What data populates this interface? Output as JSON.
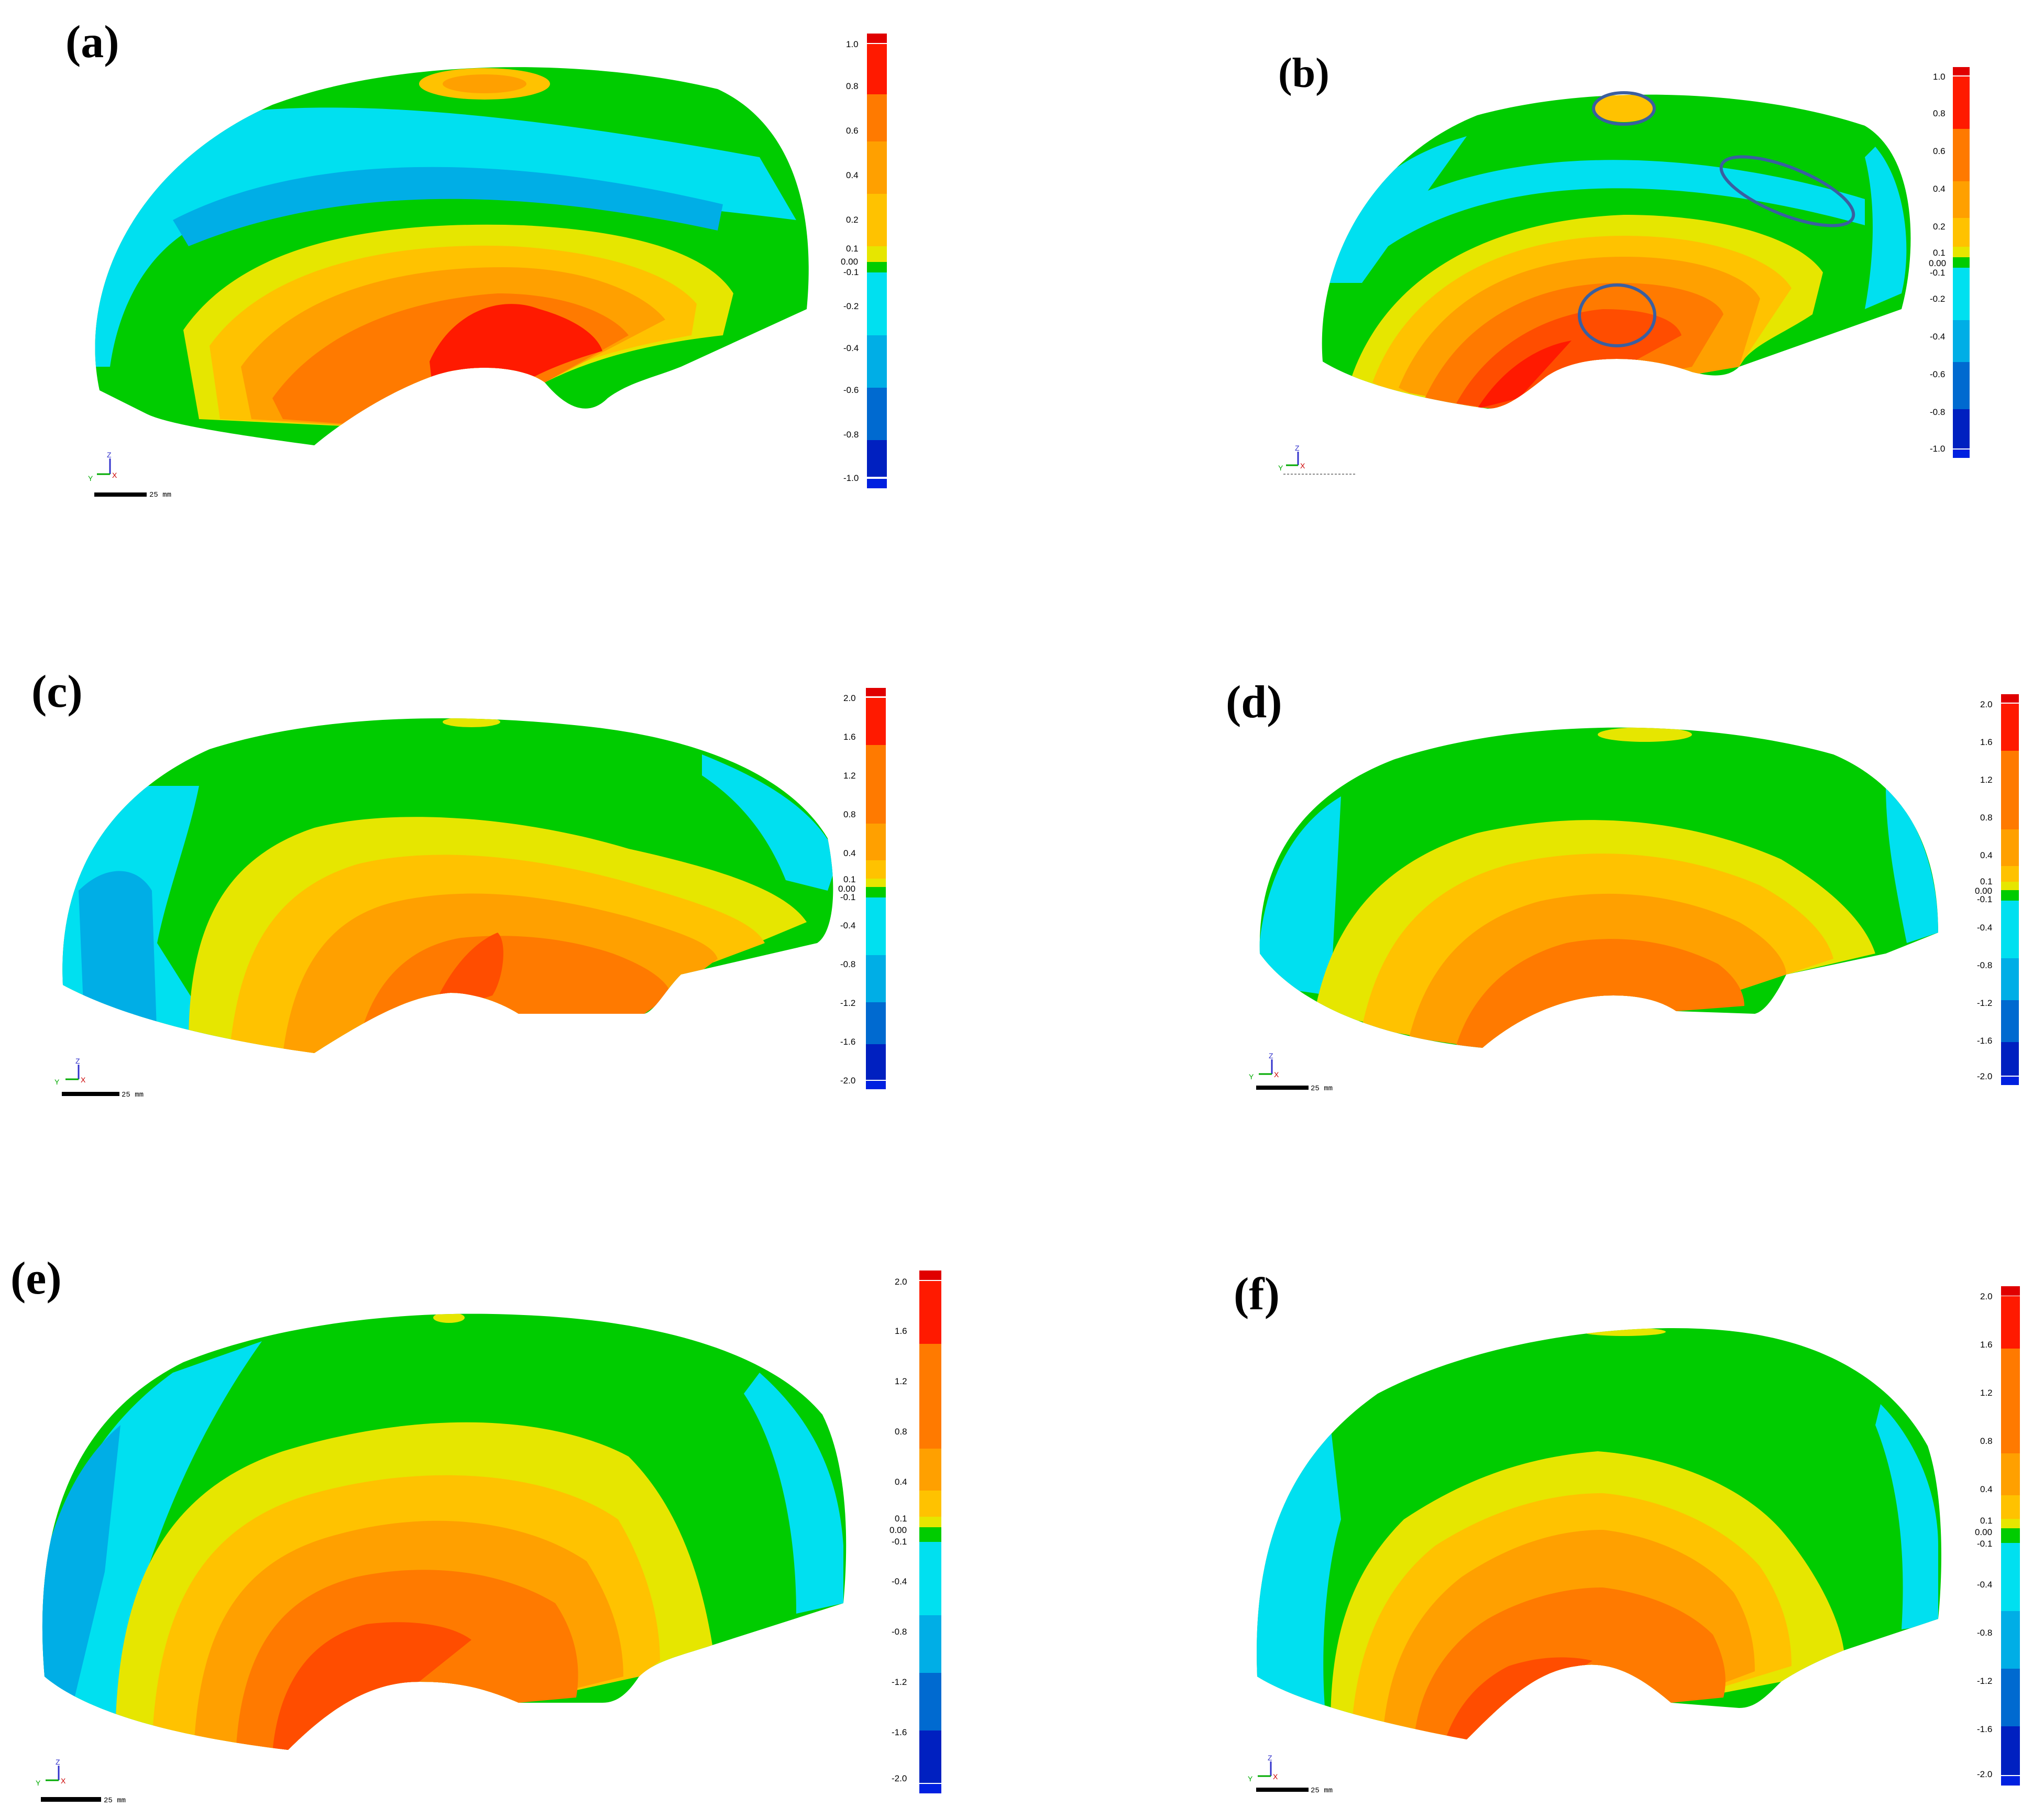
{
  "colors": {
    "red": "#ff1a00",
    "orange_red": "#ff4d00",
    "orange": "#ff7a00",
    "light_orange": "#ffa000",
    "amber": "#ffc200",
    "yellow": "#e6e600",
    "green": "#00cc00",
    "cyan": "#00e0f0",
    "light_blue": "#00aee6",
    "blue": "#006ad0",
    "dark_blue": "#0020c0"
  },
  "panels": [
    {
      "id": "a",
      "label": "(a)",
      "max": 1.0,
      "ticks": [
        "1.0",
        "0.8",
        "0.6",
        "0.4",
        "0.2",
        "0.1",
        "0.00",
        "-0.1",
        "-0.2",
        "-0.4",
        "-0.6",
        "-0.8",
        "-1.0"
      ],
      "scalebar": "25 mm",
      "axis": {
        "z": "Z",
        "y": "Y",
        "x": "X"
      }
    },
    {
      "id": "b",
      "label": "(b)",
      "max": 1.0,
      "ticks": [
        "1.0",
        "0.8",
        "0.6",
        "0.4",
        "0.2",
        "0.1",
        "0.00",
        "-0.1",
        "-0.2",
        "-0.4",
        "-0.6",
        "-0.8",
        "-1.0"
      ],
      "scalebar": "",
      "axis": {
        "z": "Z",
        "y": "Y",
        "x": "X"
      }
    },
    {
      "id": "c",
      "label": "(c)",
      "max": 2.0,
      "ticks": [
        "2.0",
        "1.6",
        "1.2",
        "0.8",
        "0.4",
        "0.1",
        "0.00",
        "-0.1",
        "-0.4",
        "-0.8",
        "-1.2",
        "-1.6",
        "-2.0"
      ],
      "scalebar": "25 mm",
      "axis": {
        "z": "Z",
        "y": "Y",
        "x": "X"
      }
    },
    {
      "id": "d",
      "label": "(d)",
      "max": 2.0,
      "ticks": [
        "2.0",
        "1.6",
        "1.2",
        "0.8",
        "0.4",
        "0.1",
        "0.00",
        "-0.1",
        "-0.4",
        "-0.8",
        "-1.2",
        "-1.6",
        "-2.0"
      ],
      "scalebar": "25 mm",
      "axis": {
        "z": "Z",
        "y": "Y",
        "x": "X"
      }
    },
    {
      "id": "e",
      "label": "(e)",
      "max": 2.0,
      "ticks": [
        "2.0",
        "1.6",
        "1.2",
        "0.8",
        "0.4",
        "0.1",
        "0.00",
        "-0.1",
        "-0.4",
        "-0.8",
        "-1.2",
        "-1.6",
        "-2.0"
      ],
      "scalebar": "25 mm",
      "axis": {
        "z": "Z",
        "y": "Y",
        "x": "X"
      }
    },
    {
      "id": "f",
      "label": "(f)",
      "max": 2.0,
      "ticks": [
        "2.0",
        "1.6",
        "1.2",
        "0.8",
        "0.4",
        "0.1",
        "0.00",
        "-0.1",
        "-0.4",
        "-0.8",
        "-1.2",
        "-1.6",
        "-2.0"
      ],
      "scalebar": "25 mm",
      "axis": {
        "z": "Z",
        "y": "Y",
        "x": "X"
      }
    }
  ]
}
